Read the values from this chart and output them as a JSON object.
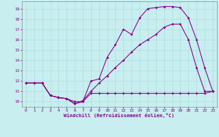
{
  "xlabel": "Windchill (Refroidissement éolien,°C)",
  "bg_color": "#c8eef0",
  "grid_color": "#aadddd",
  "line_color": "#880088",
  "xlim": [
    -0.5,
    23.5
  ],
  "ylim": [
    9.5,
    19.7
  ],
  "xticks": [
    0,
    1,
    2,
    3,
    4,
    5,
    6,
    7,
    8,
    9,
    10,
    11,
    12,
    13,
    14,
    15,
    16,
    17,
    18,
    19,
    20,
    21,
    22,
    23
  ],
  "yticks": [
    10,
    11,
    12,
    13,
    14,
    15,
    16,
    17,
    18,
    19
  ],
  "line1_x": [
    0,
    1,
    2,
    3,
    4,
    5,
    6,
    7,
    8,
    9,
    10,
    11,
    12,
    13,
    14,
    15,
    16,
    17,
    18,
    19,
    20,
    21,
    22,
    23
  ],
  "line1_y": [
    11.8,
    11.8,
    11.8,
    10.6,
    10.4,
    10.3,
    10.0,
    10.0,
    10.8,
    10.8,
    10.8,
    10.8,
    10.8,
    10.8,
    10.8,
    10.8,
    10.8,
    10.8,
    10.8,
    10.8,
    10.8,
    10.8,
    10.8,
    11.0
  ],
  "line2_x": [
    0,
    1,
    2,
    3,
    4,
    5,
    6,
    7,
    8,
    9,
    10,
    11,
    12,
    13,
    14,
    15,
    16,
    17,
    18,
    19,
    20,
    21,
    22,
    23
  ],
  "line2_y": [
    11.8,
    11.8,
    11.8,
    10.6,
    10.4,
    10.3,
    9.8,
    10.0,
    12.0,
    12.2,
    14.3,
    15.5,
    17.0,
    16.5,
    18.1,
    19.0,
    19.1,
    19.2,
    19.2,
    19.1,
    18.1,
    16.0,
    13.3,
    11.0
  ],
  "line3_x": [
    0,
    1,
    2,
    3,
    4,
    5,
    6,
    7,
    8,
    9,
    10,
    11,
    12,
    13,
    14,
    15,
    16,
    17,
    18,
    19,
    20,
    21,
    22,
    23
  ],
  "line3_y": [
    11.8,
    11.8,
    11.8,
    10.6,
    10.4,
    10.3,
    9.8,
    10.1,
    11.0,
    11.8,
    12.5,
    13.3,
    14.0,
    14.8,
    15.5,
    16.0,
    16.5,
    17.2,
    17.5,
    17.5,
    16.0,
    13.3,
    11.0,
    11.0
  ]
}
